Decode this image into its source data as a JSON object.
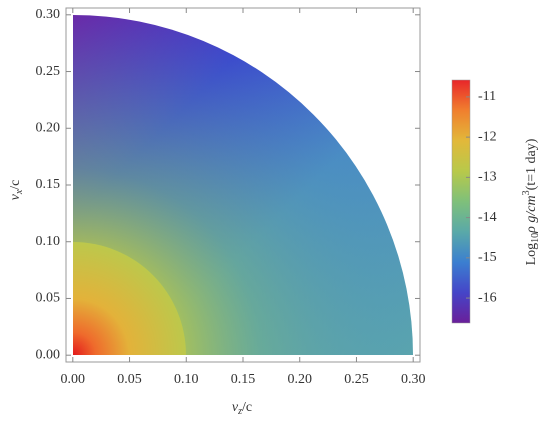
{
  "chart_data": {
    "type": "density",
    "xlabel": [
      "v",
      "z",
      "/c"
    ],
    "ylabel": [
      "v",
      "x",
      "/c"
    ],
    "xlim": [
      -0.006,
      0.306
    ],
    "ylim": [
      -0.006,
      0.306
    ],
    "xticks": [
      {
        "value": 0,
        "label": "0.00"
      },
      {
        "value": 0.05,
        "label": "0.05"
      },
      {
        "value": 0.1,
        "label": "0.10"
      },
      {
        "value": 0.15,
        "label": "0.15"
      },
      {
        "value": 0.2,
        "label": "0.20"
      },
      {
        "value": 0.25,
        "label": "0.25"
      },
      {
        "value": 0.3,
        "label": "0.30"
      }
    ],
    "yticks": [
      {
        "value": 0,
        "label": "0.00"
      },
      {
        "value": 0.05,
        "label": "0.05"
      },
      {
        "value": 0.1,
        "label": "0.10"
      },
      {
        "value": 0.15,
        "label": "0.15"
      },
      {
        "value": 0.2,
        "label": "0.20"
      },
      {
        "value": 0.25,
        "label": "0.25"
      },
      {
        "value": 0.3,
        "label": "0.30"
      }
    ],
    "colorbar": {
      "label": [
        "Log",
        "10",
        "ρ g/cm",
        "3",
        "(t=1 day)"
      ],
      "lim": [
        -16.62,
        -10.58
      ],
      "ticks": [
        -16,
        -15,
        -14,
        -13,
        -12,
        -11
      ],
      "colors": [
        "#6a1f9a",
        "#4545c8",
        "#3b7fd0",
        "#5aa9a8",
        "#7fc07a",
        "#b8c94a",
        "#e2b83a",
        "#f07f2e",
        "#e8262a"
      ]
    }
  }
}
